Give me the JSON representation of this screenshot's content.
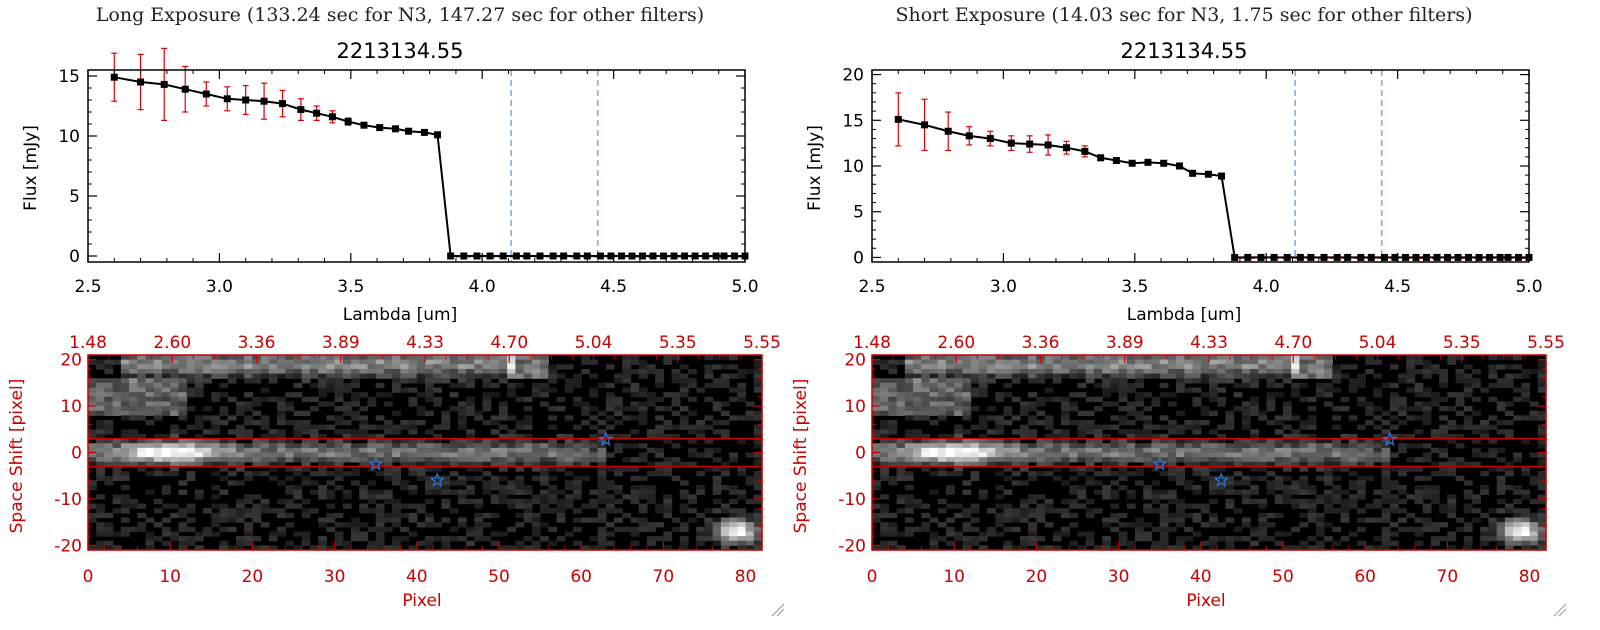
{
  "panels": [
    {
      "exposure_title": "Long Exposure (133.24 sec for N3, 147.27 sec for other filters)",
      "resize_grip": "resize-grip-icon",
      "spectrum": {
        "title": "2213134.55",
        "xlabel": "Lambda [um]",
        "ylabel": "Flux [mJy]",
        "x_ticks": [
          "2.5",
          "3.0",
          "3.5",
          "4.0",
          "4.5",
          "5.0"
        ],
        "y_ticks": [
          "0",
          "5",
          "10",
          "15"
        ]
      },
      "image": {
        "xlabel": "Pixel",
        "ylabel": "Space Shift [pixel]",
        "bottom_ticks": [
          "0",
          "10",
          "20",
          "30",
          "40",
          "50",
          "60",
          "70",
          "80"
        ],
        "top_ticks": [
          "1.48",
          "2.60",
          "3.36",
          "3.89",
          "4.33",
          "4.70",
          "5.04",
          "5.35",
          "5.55"
        ],
        "left_ticks": [
          "20",
          "10",
          "0",
          "-10",
          "-20"
        ]
      }
    },
    {
      "exposure_title": "Short Exposure (14.03 sec for N3, 1.75 sec for other filters)",
      "resize_grip": "resize-grip-icon",
      "spectrum": {
        "title": "2213134.55",
        "xlabel": "Lambda [um]",
        "ylabel": "Flux [mJy]",
        "x_ticks": [
          "2.5",
          "3.0",
          "3.5",
          "4.0",
          "4.5",
          "5.0"
        ],
        "y_ticks": [
          "0",
          "5",
          "10",
          "15",
          "20"
        ]
      },
      "image": {
        "xlabel": "Pixel",
        "ylabel": "Space Shift [pixel]",
        "bottom_ticks": [
          "0",
          "10",
          "20",
          "30",
          "40",
          "50",
          "60",
          "70",
          "80"
        ],
        "top_ticks": [
          "1.48",
          "2.60",
          "3.36",
          "3.89",
          "4.33",
          "4.70",
          "5.04",
          "5.35",
          "5.55"
        ],
        "left_ticks": [
          "20",
          "10",
          "0",
          "-10",
          "-20"
        ]
      }
    }
  ],
  "colors": {
    "axis": "#000000",
    "image_axis": "#cc0000",
    "errorbar": "#dd0000",
    "marker": "#000000",
    "dashed_line": "#4499ee",
    "star": "#3377dd",
    "aperture_line": "#cc0000"
  },
  "chart_data": [
    {
      "type": "line",
      "title": "2213134.55",
      "xlabel": "Lambda [um]",
      "ylabel": "Flux [mJy]",
      "xlim": [
        2.5,
        5.0
      ],
      "ylim": [
        -0.5,
        15.5
      ],
      "vlines": [
        4.11,
        4.44
      ],
      "series": [
        {
          "x": [
            2.6,
            2.7,
            2.79,
            2.87,
            2.95,
            3.03,
            3.1,
            3.17,
            3.24,
            3.31,
            3.37,
            3.43,
            3.49,
            3.55,
            3.61,
            3.67,
            3.72,
            3.78,
            3.83,
            3.88,
            3.93,
            3.98,
            4.03,
            4.08,
            4.13,
            4.17,
            4.22,
            4.27,
            4.31,
            4.36,
            4.4,
            4.45,
            4.49,
            4.53,
            4.57,
            4.61,
            4.65,
            4.69,
            4.73,
            4.77,
            4.81,
            4.85,
            4.89,
            4.92,
            4.96,
            5.0
          ],
          "y": [
            14.9,
            14.5,
            14.3,
            13.9,
            13.5,
            13.1,
            13.0,
            12.9,
            12.7,
            12.2,
            11.9,
            11.6,
            11.2,
            10.9,
            10.7,
            10.6,
            10.4,
            10.3,
            10.1,
            0,
            0,
            0,
            0,
            0,
            0,
            0,
            0,
            0,
            0,
            0,
            0,
            0,
            0,
            0,
            0,
            0,
            0,
            0,
            0,
            0,
            0,
            0,
            0,
            0,
            0,
            0
          ],
          "yerr": [
            2.0,
            2.3,
            3.0,
            1.9,
            1.0,
            1.0,
            1.2,
            1.5,
            1.1,
            0.9,
            0.6,
            0.5,
            0.3,
            0.2,
            0.2,
            0.2,
            0.2,
            0.2,
            0.2,
            0,
            0,
            0,
            0,
            0,
            0,
            0,
            0,
            0,
            0,
            0,
            0,
            0,
            0,
            0,
            0,
            0,
            0,
            0,
            0,
            0,
            0,
            0,
            0,
            0,
            0,
            0
          ]
        }
      ]
    },
    {
      "type": "heatmap",
      "xlabel": "Pixel",
      "ylabel": "Space Shift [pixel]",
      "xlim": [
        0,
        82
      ],
      "ylim": [
        -21,
        21
      ],
      "aperture_lines": [
        3,
        -3
      ],
      "stars": [
        [
          35,
          -2.5
        ],
        [
          42.5,
          -6
        ],
        [
          63,
          2.8
        ]
      ]
    },
    {
      "type": "line",
      "title": "2213134.55",
      "xlabel": "Lambda [um]",
      "ylabel": "Flux [mJy]",
      "xlim": [
        2.5,
        5.0
      ],
      "ylim": [
        -0.5,
        20.5
      ],
      "vlines": [
        4.11,
        4.44
      ],
      "series": [
        {
          "x": [
            2.6,
            2.7,
            2.79,
            2.87,
            2.95,
            3.03,
            3.1,
            3.17,
            3.24,
            3.31,
            3.37,
            3.43,
            3.49,
            3.55,
            3.61,
            3.67,
            3.72,
            3.78,
            3.83,
            3.88,
            3.93,
            3.98,
            4.03,
            4.08,
            4.13,
            4.17,
            4.22,
            4.27,
            4.31,
            4.36,
            4.4,
            4.45,
            4.49,
            4.53,
            4.57,
            4.61,
            4.65,
            4.69,
            4.73,
            4.77,
            4.81,
            4.85,
            4.89,
            4.92,
            4.96,
            5.0
          ],
          "y": [
            15.1,
            14.5,
            13.8,
            13.3,
            13.0,
            12.5,
            12.4,
            12.3,
            12.0,
            11.6,
            10.9,
            10.6,
            10.3,
            10.4,
            10.3,
            10.0,
            9.2,
            9.1,
            8.9,
            0,
            0,
            0,
            0,
            0,
            0,
            0,
            0,
            0,
            0,
            0,
            0,
            0,
            0,
            0,
            0,
            0,
            0,
            0,
            0,
            0,
            0,
            0,
            0,
            0,
            0,
            0
          ],
          "yerr": [
            2.9,
            2.8,
            2.1,
            1.0,
            0.8,
            0.8,
            0.9,
            1.1,
            0.7,
            0.6,
            0.3,
            0.3,
            0.2,
            0.2,
            0.2,
            0.2,
            0.2,
            0.2,
            0.2,
            0,
            0,
            0,
            0,
            0,
            0,
            0,
            0,
            0,
            0,
            0,
            0,
            0,
            0,
            0,
            0,
            0,
            0,
            0,
            0,
            0,
            0,
            0,
            0,
            0,
            0,
            0
          ]
        }
      ]
    },
    {
      "type": "heatmap",
      "xlabel": "Pixel",
      "ylabel": "Space Shift [pixel]",
      "xlim": [
        0,
        82
      ],
      "ylim": [
        -21,
        21
      ],
      "aperture_lines": [
        3,
        -3
      ],
      "stars": [
        [
          35,
          -2.5
        ],
        [
          42.5,
          -6
        ],
        [
          63,
          2.8
        ]
      ]
    }
  ]
}
